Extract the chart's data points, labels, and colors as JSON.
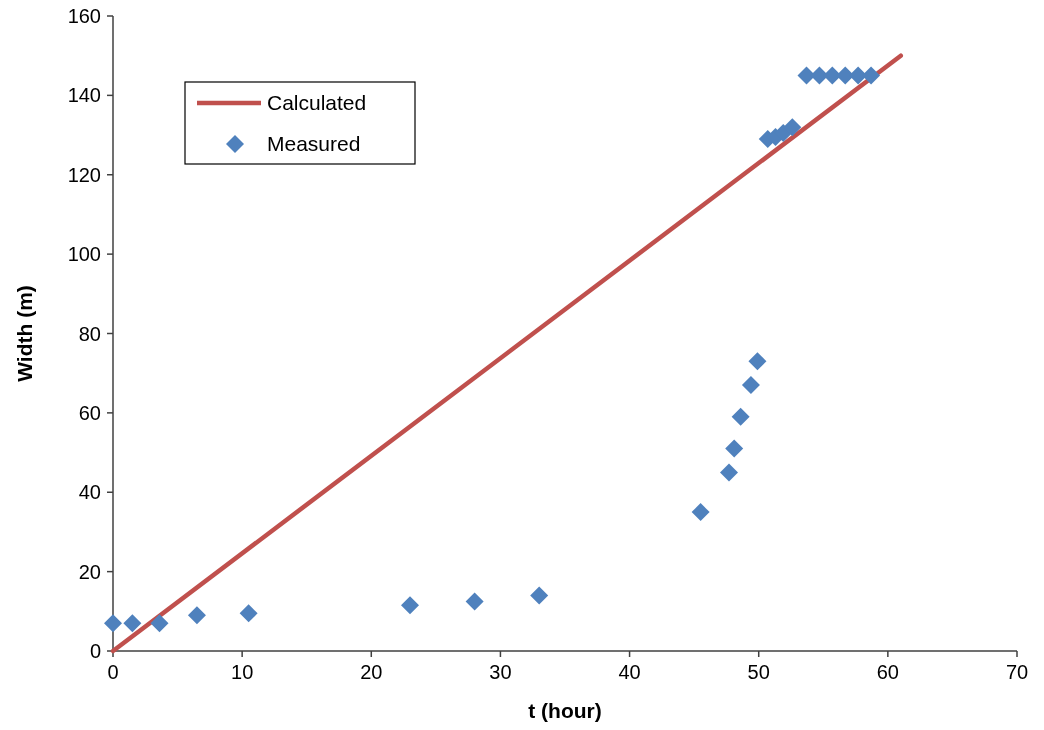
{
  "chart_data": {
    "type": "scatter",
    "xlabel": "t (hour)",
    "ylabel": "Width (m)",
    "xlim": [
      0,
      70
    ],
    "ylim": [
      0,
      160
    ],
    "xticks": [
      0,
      10,
      20,
      30,
      40,
      50,
      60,
      70
    ],
    "yticks": [
      0,
      20,
      40,
      60,
      80,
      100,
      120,
      140,
      160
    ],
    "grid": false,
    "legend": "top left",
    "series": [
      {
        "name": "Calculated",
        "type": "line",
        "color": "#c0504d",
        "x": [
          0,
          61
        ],
        "values": [
          0,
          150
        ],
        "marker": "none"
      },
      {
        "name": "Measured",
        "color": "#4f81bd",
        "marker": "diamond",
        "x": [
          0,
          1.5,
          3.6,
          6.5,
          10.5,
          23,
          28,
          33,
          45.5,
          47.7,
          48.1,
          48.6,
          49.4,
          49.9,
          50.7,
          51.3,
          51.9,
          52.6,
          53.7,
          54.7,
          55.7,
          56.7,
          57.7,
          58.7
        ],
        "values": [
          7,
          7,
          7,
          9,
          9.5,
          11.5,
          12.5,
          14,
          35,
          45,
          51,
          59,
          67,
          73,
          129,
          129.5,
          130.5,
          132,
          145,
          145,
          145,
          145,
          145,
          145
        ]
      }
    ]
  }
}
